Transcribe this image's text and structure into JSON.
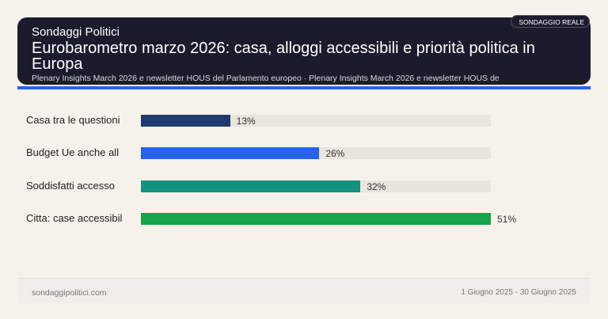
{
  "header": {
    "brand": "Sondaggi Politici",
    "title": "Eurobarometro marzo 2026: casa, alloggi accessibili e priorità politica in Europa",
    "subtitle": "Plenary Insights March 2026 e newsletter HOUS del Parlamento europeo · Plenary Insights March 2026 e newsletter HOUS de",
    "badge": "SONDAGGIO REALE"
  },
  "chart_data": {
    "type": "bar",
    "orientation": "horizontal",
    "categories": [
      "Casa tra le questioni",
      "Budget Ue anche all",
      "Soddisfatti accesso",
      "Citta: case accessibil"
    ],
    "values": [
      13,
      26,
      32,
      51
    ],
    "labels": [
      "13%",
      "26%",
      "32%",
      "51%"
    ],
    "colors": [
      "#1e3a6e",
      "#2563eb",
      "#14917f",
      "#16a34a"
    ],
    "xlim": [
      0,
      51
    ]
  },
  "footer": {
    "site": "sondaggipolitici.com",
    "period": "1 Giugno 2025 - 30 Giugno 2025"
  }
}
